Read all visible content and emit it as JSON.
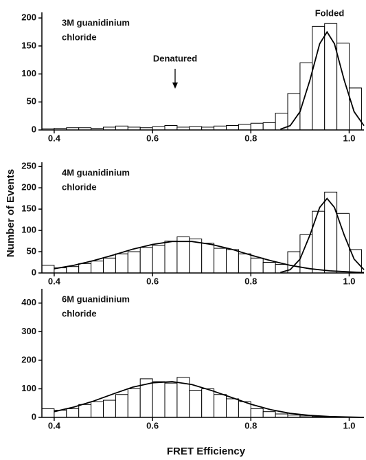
{
  "figure": {
    "xlabel": "FRET Efficiency",
    "ylabel": "Number of Events"
  },
  "chart_data": [
    {
      "type": "histogram",
      "label": [
        "3M guanidinium",
        "chloride"
      ],
      "annotations": [
        "Denatured",
        "Folded"
      ],
      "bins": [
        0.375,
        0.4,
        0.425,
        0.45,
        0.475,
        0.5,
        0.525,
        0.55,
        0.575,
        0.6,
        0.625,
        0.65,
        0.675,
        0.7,
        0.725,
        0.75,
        0.775,
        0.8,
        0.825,
        0.85,
        0.875,
        0.9,
        0.925,
        0.95,
        0.975,
        1.0,
        1.025
      ],
      "counts": [
        2,
        3,
        4,
        4,
        3,
        5,
        7,
        5,
        4,
        6,
        8,
        5,
        6,
        5,
        7,
        8,
        10,
        12,
        13,
        30,
        65,
        120,
        185,
        190,
        155,
        75
      ],
      "fits": [
        {
          "x": [
            0.86,
            0.88,
            0.9,
            0.92,
            0.94,
            0.955,
            0.97,
            0.99,
            1.01,
            1.03
          ],
          "values": [
            1.2,
            7.7,
            32.6,
            88.6,
            154,
            175,
            154,
            88.6,
            32.6,
            7.7
          ]
        }
      ],
      "color": "#ffffff",
      "line_color": "#000000",
      "xlim": [
        0.375,
        1.03
      ],
      "ylim": [
        0,
        210
      ],
      "xticks": [
        0.4,
        0.6,
        0.8,
        {
          "value": 1.0,
          "label": "1.0"
        }
      ],
      "yticks": [
        0,
        50,
        100,
        150,
        200
      ]
    },
    {
      "type": "histogram",
      "label": [
        "4M guanidinium",
        "chloride"
      ],
      "bins": [
        0.375,
        0.4,
        0.425,
        0.45,
        0.475,
        0.5,
        0.525,
        0.55,
        0.575,
        0.6,
        0.625,
        0.65,
        0.675,
        0.7,
        0.725,
        0.75,
        0.775,
        0.8,
        0.825,
        0.85,
        0.875,
        0.9,
        0.925,
        0.95,
        0.975,
        1.0,
        1.025
      ],
      "counts": [
        18,
        12,
        15,
        22,
        28,
        35,
        45,
        50,
        60,
        65,
        75,
        85,
        80,
        70,
        58,
        55,
        45,
        35,
        25,
        20,
        50,
        90,
        145,
        190,
        140,
        55
      ],
      "fits": [
        {
          "x": [
            0.4,
            0.44,
            0.48,
            0.52,
            0.56,
            0.6,
            0.64,
            0.68,
            0.72,
            0.76,
            0.8,
            0.84,
            0.88,
            0.92,
            0.96,
            1.0,
            1.03
          ],
          "values": [
            10,
            18,
            29,
            42,
            56,
            67,
            74,
            74,
            67,
            56,
            42,
            29,
            18,
            10,
            5,
            2.5,
            1
          ]
        },
        {
          "x": [
            0.86,
            0.88,
            0.9,
            0.92,
            0.94,
            0.955,
            0.97,
            0.99,
            1.01,
            1.03
          ],
          "values": [
            1.2,
            7.7,
            32.6,
            88.6,
            154,
            175,
            154,
            88.6,
            32.6,
            7.7
          ]
        }
      ],
      "color": "#ffffff",
      "line_color": "#000000",
      "xlim": [
        0.375,
        1.03
      ],
      "ylim": [
        0,
        260
      ],
      "xticks": [
        0.4,
        0.6,
        0.8,
        {
          "value": 1.0,
          "label": "1.0"
        }
      ],
      "yticks": [
        0,
        50,
        100,
        150,
        200,
        250
      ]
    },
    {
      "type": "histogram",
      "label": [
        "6M guanidinium",
        "chloride"
      ],
      "bins": [
        0.375,
        0.4,
        0.425,
        0.45,
        0.475,
        0.5,
        0.525,
        0.55,
        0.575,
        0.6,
        0.625,
        0.65,
        0.675,
        0.7,
        0.725,
        0.75,
        0.775,
        0.8,
        0.825,
        0.85,
        0.875,
        0.9,
        0.925,
        0.95,
        0.975,
        1.0,
        1.025
      ],
      "counts": [
        30,
        25,
        30,
        45,
        55,
        60,
        80,
        100,
        135,
        125,
        120,
        140,
        95,
        100,
        80,
        65,
        55,
        30,
        20,
        12,
        8,
        5,
        3,
        2,
        1,
        0
      ],
      "fits": [
        {
          "x": [
            0.4,
            0.44,
            0.48,
            0.52,
            0.56,
            0.6,
            0.64,
            0.68,
            0.72,
            0.76,
            0.8,
            0.84,
            0.88,
            0.92,
            0.96,
            1.0,
            1.03
          ],
          "values": [
            20,
            36,
            57,
            82,
            106,
            121,
            125,
            115,
            94,
            70,
            46,
            27,
            14,
            7,
            3,
            1,
            0
          ]
        }
      ],
      "color": "#ffffff",
      "line_color": "#000000",
      "xlim": [
        0.375,
        1.03
      ],
      "ylim": [
        0,
        450
      ],
      "xticks": [
        0.4,
        0.6,
        0.8,
        {
          "value": 1.0,
          "label": "1.0"
        }
      ],
      "yticks": [
        0,
        100,
        200,
        300,
        400
      ]
    }
  ]
}
